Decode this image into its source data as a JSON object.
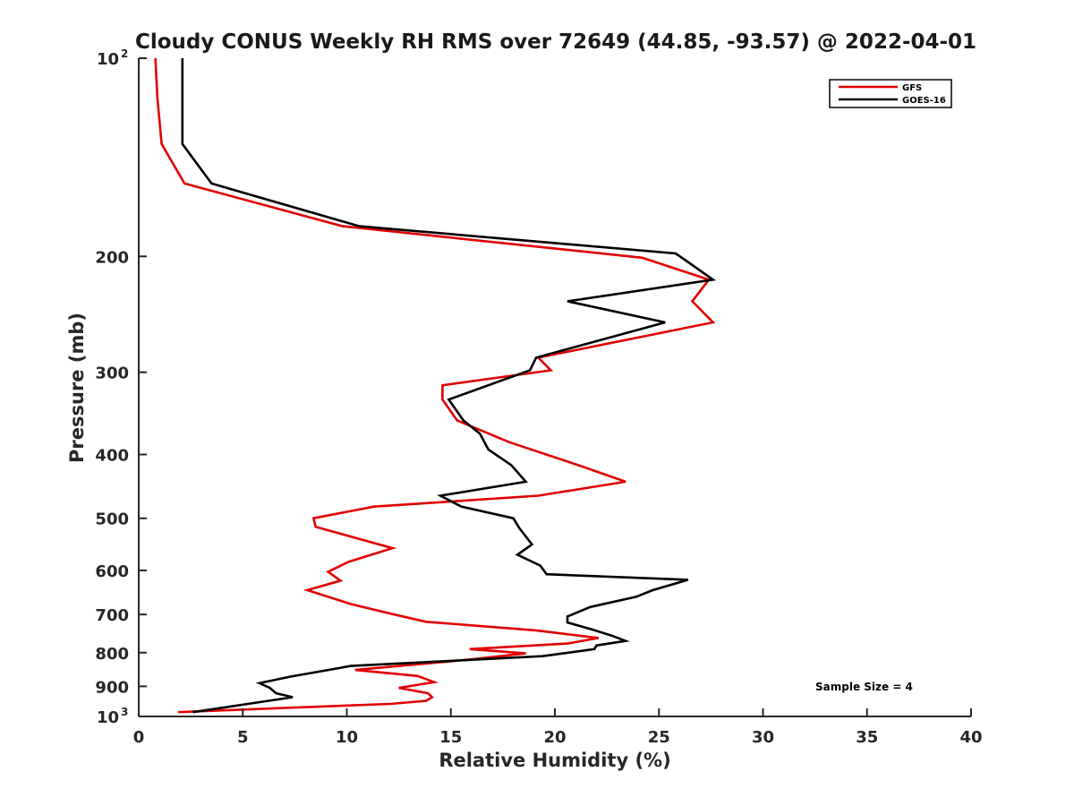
{
  "chart_data": {
    "type": "line",
    "title": "Cloudy CONUS Weekly RH RMS over 72649 (44.85, -93.57) @ 2022-04-01",
    "xlabel": "Relative Humidity (%)",
    "ylabel": "Pressure (mb)",
    "xlim": [
      0,
      40
    ],
    "ylim": [
      100,
      1000
    ],
    "y_scale": "log",
    "y_reversed": true,
    "grid": false,
    "legend_position": "top-right",
    "annotation": "Sample Size = 4",
    "x_ticks": [
      "0",
      "5",
      "10",
      "15",
      "20",
      "25",
      "30",
      "35",
      "40"
    ],
    "y_ticks": [
      {
        "value": 100,
        "label": "10",
        "exp": "2"
      },
      {
        "value": 200,
        "label": "200",
        "exp": ""
      },
      {
        "value": 300,
        "label": "300",
        "exp": ""
      },
      {
        "value": 400,
        "label": "400",
        "exp": ""
      },
      {
        "value": 500,
        "label": "500",
        "exp": ""
      },
      {
        "value": 600,
        "label": "600",
        "exp": ""
      },
      {
        "value": 700,
        "label": "700",
        "exp": ""
      },
      {
        "value": 800,
        "label": "800",
        "exp": ""
      },
      {
        "value": 900,
        "label": "900",
        "exp": ""
      },
      {
        "value": 1000,
        "label": "10",
        "exp": "3"
      }
    ],
    "series": [
      {
        "name": "GFS",
        "color": "#e00000",
        "points": [
          [
            0.8,
            100
          ],
          [
            0.9,
            115
          ],
          [
            1.1,
            135
          ],
          [
            2.2,
            155
          ],
          [
            9.8,
            180
          ],
          [
            24.2,
            201
          ],
          [
            27.4,
            217
          ],
          [
            26.6,
            234
          ],
          [
            27.6,
            252
          ],
          [
            19.2,
            285
          ],
          [
            19.8,
            298
          ],
          [
            14.6,
            314
          ],
          [
            14.6,
            330
          ],
          [
            15.3,
            355
          ],
          [
            17.8,
            383
          ],
          [
            21.2,
            416
          ],
          [
            23.4,
            440
          ],
          [
            19.2,
            462
          ],
          [
            11.3,
            480
          ],
          [
            8.4,
            500
          ],
          [
            8.5,
            515
          ],
          [
            12.2,
            555
          ],
          [
            10.1,
            582
          ],
          [
            9.1,
            603
          ],
          [
            9.7,
            622
          ],
          [
            8.1,
            643
          ],
          [
            10.2,
            675
          ],
          [
            12.1,
            698
          ],
          [
            13.8,
            718
          ],
          [
            19.1,
            740
          ],
          [
            22.1,
            760
          ],
          [
            20.6,
            775
          ],
          [
            15.9,
            790
          ],
          [
            18.6,
            802
          ],
          [
            15.8,
            820
          ],
          [
            10.4,
            850
          ],
          [
            13.4,
            868
          ],
          [
            14.2,
            887
          ],
          [
            12.5,
            905
          ],
          [
            13.9,
            922
          ],
          [
            14.1,
            935
          ],
          [
            13.8,
            947
          ],
          [
            12.1,
            957
          ],
          [
            7.2,
            970
          ],
          [
            1.9,
            985
          ]
        ]
      },
      {
        "name": "GOES-16",
        "color": "#000000",
        "points": [
          [
            2.1,
            100
          ],
          [
            2.1,
            115
          ],
          [
            2.1,
            135
          ],
          [
            3.5,
            155
          ],
          [
            10.6,
            180
          ],
          [
            25.8,
            198
          ],
          [
            26.3,
            203
          ],
          [
            27.6,
            217
          ],
          [
            20.6,
            234
          ],
          [
            25.3,
            252
          ],
          [
            19.1,
            285
          ],
          [
            18.8,
            298
          ],
          [
            14.9,
            330
          ],
          [
            15.6,
            355
          ],
          [
            16.4,
            372
          ],
          [
            16.8,
            393
          ],
          [
            17.9,
            415
          ],
          [
            18.6,
            440
          ],
          [
            14.5,
            462
          ],
          [
            15.5,
            480
          ],
          [
            18.0,
            500
          ],
          [
            18.3,
            518
          ],
          [
            18.9,
            548
          ],
          [
            18.2,
            568
          ],
          [
            19.3,
            590
          ],
          [
            19.6,
            608
          ],
          [
            26.4,
            620
          ],
          [
            24.7,
            643
          ],
          [
            23.9,
            658
          ],
          [
            21.7,
            682
          ],
          [
            20.6,
            705
          ],
          [
            20.6,
            720
          ],
          [
            21.8,
            738
          ],
          [
            22.8,
            755
          ],
          [
            23.4,
            768
          ],
          [
            22.0,
            780
          ],
          [
            21.9,
            790
          ],
          [
            19.4,
            810
          ],
          [
            10.2,
            838
          ],
          [
            7.3,
            870
          ],
          [
            5.8,
            890
          ],
          [
            6.3,
            905
          ],
          [
            6.6,
            922
          ],
          [
            7.4,
            935
          ],
          [
            2.6,
            985
          ]
        ]
      }
    ]
  }
}
